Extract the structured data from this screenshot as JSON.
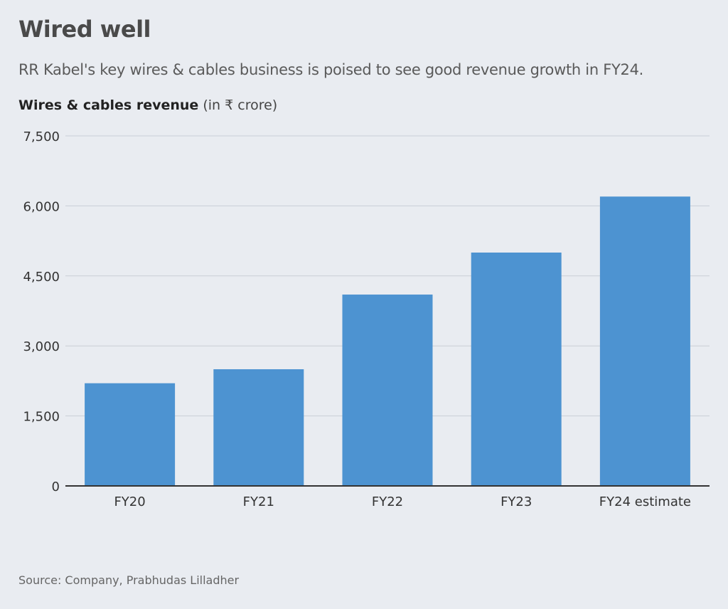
{
  "header": {
    "title": "Wired well",
    "subtitle": "RR Kabel's key wires & cables business is poised to see good revenue growth in FY24.",
    "chart_heading_bold": "Wires & cables revenue",
    "chart_heading_unit": " (in ₹ crore)"
  },
  "footer": {
    "source": "Source: Company, Prabhudas Lilladher"
  },
  "colors": {
    "bar": "#4d93d1",
    "grid": "#c9ced6",
    "axis": "#333333"
  },
  "chart_data": {
    "type": "bar",
    "title": "Wired well",
    "ylabel": "Wires & cables revenue (in ₹ crore)",
    "categories": [
      "FY20",
      "FY21",
      "FY22",
      "FY23",
      "FY24 estimate"
    ],
    "values": [
      2200,
      2500,
      4100,
      5000,
      6200
    ],
    "ylim": [
      0,
      7500
    ],
    "yticks": [
      0,
      1500,
      3000,
      4500,
      6000,
      7500
    ],
    "ytick_labels": [
      "0",
      "1,500",
      "3,000",
      "4,500",
      "6,000",
      "7,500"
    ],
    "grid": true,
    "legend": "none"
  }
}
